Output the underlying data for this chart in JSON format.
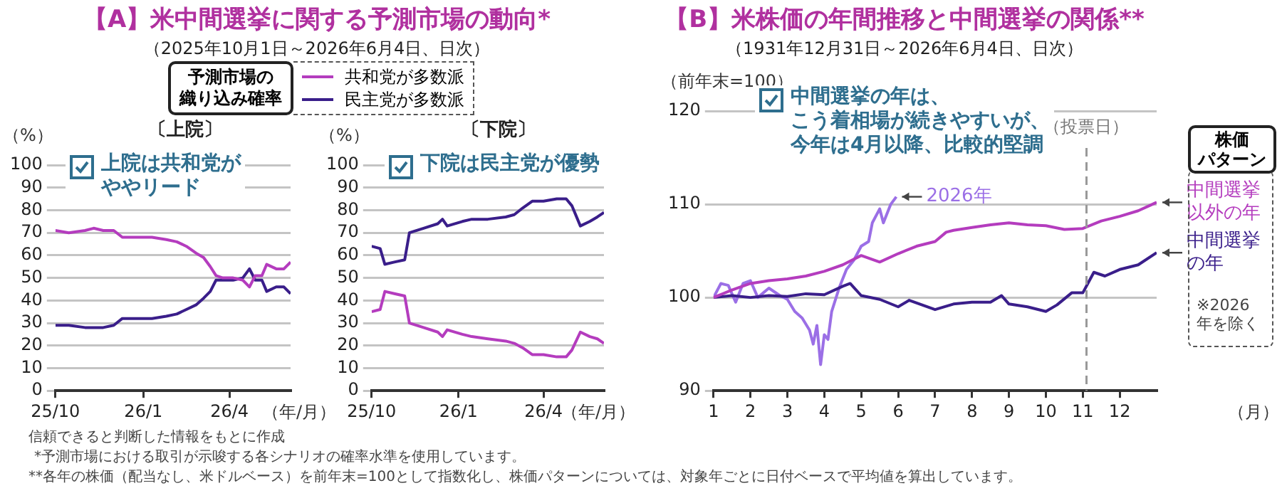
{
  "chart_data": [
    {
      "type": "line",
      "title": "【A】米中間選挙に関する予測市場の動向*",
      "subtitle": "（2025年10月1日～2026年6月4日、日次）",
      "legend_title": "予測市場の織り込み確率",
      "legend": "top",
      "ylabel": "（%）",
      "xlabel": "（年/月）",
      "x": [
        "2025-10-01",
        "2025-10-15",
        "2025-11-01",
        "2025-11-10",
        "2025-11-20",
        "2025-12-01",
        "2025-12-10",
        "2025-12-25",
        "2026-01-10",
        "2026-01-25",
        "2026-02-05",
        "2026-02-15",
        "2026-02-25",
        "2026-03-05",
        "2026-03-12",
        "2026-03-18",
        "2026-03-25",
        "2026-04-05",
        "2026-04-15",
        "2026-04-22",
        "2026-04-28",
        "2026-05-05",
        "2026-05-10",
        "2026-05-20",
        "2026-05-28",
        "2026-06-04"
      ],
      "xlim": [
        "2025-10-01",
        "2026-06-04"
      ],
      "xticks": [
        {
          "value": "2025-10-01",
          "label": "25/10"
        },
        {
          "value": "2026-01-01",
          "label": "26/1"
        },
        {
          "value": "2026-04-01",
          "label": "26/4"
        }
      ],
      "ylim": [
        0,
        100
      ],
      "yticks": [
        0,
        10,
        20,
        30,
        40,
        50,
        60,
        70,
        80,
        90,
        100
      ],
      "grid": "y",
      "series": [
        {
          "name": "共和党が多数派",
          "color": "#b43cbe",
          "values": [
            71,
            70,
            71,
            72,
            71,
            71,
            68,
            68,
            68,
            67,
            66,
            64,
            61,
            59,
            55,
            51,
            50,
            50,
            49,
            46,
            51,
            51,
            56,
            54,
            54,
            57
          ]
        },
        {
          "name": "民主党が多数派",
          "color": "#3a1e8a",
          "values": [
            29,
            29,
            28,
            28,
            28,
            29,
            32,
            32,
            32,
            33,
            34,
            36,
            38,
            41,
            44,
            49,
            49,
            49,
            50,
            54,
            49,
            49,
            44,
            46,
            46,
            43
          ]
        }
      ],
      "annotations": [
        "〔上院〕",
        "上院は共和党がややリード",
        "信頼できると判断した情報をもとに作成",
        "*予測市場における取引が示唆する各シナリオの確率水準を使用しています。",
        "**各年の株価（配当なし、米ドルベース）を前年末=100として指数化し、株価パターンについては、対象年ごとに日付ベースで平均値を算出しています。"
      ]
    },
    {
      "type": "line",
      "ylabel": "（%）",
      "xlabel": "（年/月）",
      "x": [
        "2025-10-01",
        "2025-10-10",
        "2025-10-15",
        "2025-10-25",
        "2025-11-05",
        "2025-11-10",
        "2025-11-25",
        "2025-12-10",
        "2025-12-15",
        "2025-12-20",
        "2026-01-05",
        "2026-01-15",
        "2026-02-01",
        "2026-02-20",
        "2026-03-01",
        "2026-03-10",
        "2026-03-20",
        "2026-04-01",
        "2026-04-15",
        "2026-04-25",
        "2026-05-01",
        "2026-05-10",
        "2026-05-20",
        "2026-05-28",
        "2026-06-04"
      ],
      "xlim": [
        "2025-10-01",
        "2026-06-04"
      ],
      "xticks": [
        {
          "value": "2025-10-01",
          "label": "25/10"
        },
        {
          "value": "2026-01-01",
          "label": "26/1"
        },
        {
          "value": "2026-04-01",
          "label": "26/4"
        }
      ],
      "ylim": [
        0,
        100
      ],
      "yticks": [
        0,
        10,
        20,
        30,
        40,
        50,
        60,
        70,
        80,
        90,
        100
      ],
      "grid": "y",
      "series": [
        {
          "color": "#b43cbe",
          "values": [
            35,
            36,
            44,
            43,
            42,
            30,
            28,
            26,
            24,
            27,
            25,
            24,
            23,
            22,
            21,
            19,
            16,
            16,
            15,
            15,
            18,
            26,
            24,
            23,
            21
          ]
        },
        {
          "color": "#3a1e8a",
          "values": [
            64,
            63,
            56,
            57,
            58,
            70,
            72,
            74,
            76,
            73,
            75,
            76,
            76,
            77,
            78,
            81,
            84,
            84,
            85,
            85,
            82,
            73,
            75,
            77,
            79
          ]
        }
      ],
      "annotations": [
        "〔下院〕",
        "下院は民主党が優勢"
      ]
    },
    {
      "type": "line",
      "title": "【B】米株価の年間推移と中間選挙の関係**",
      "subtitle": "（1931年12月31日～2026年6月4日、日次）",
      "legend_title": "株価パターン",
      "ylabel": "（前年末=100）",
      "xlabel": "（月）",
      "xlim": [
        1,
        13
      ],
      "xticks": [
        1,
        2,
        3,
        4,
        5,
        6,
        7,
        8,
        9,
        10,
        11,
        12
      ],
      "ylim": [
        90,
        120
      ],
      "yticks": [
        90,
        100,
        110,
        120
      ],
      "grid": "y",
      "ref_lines": [
        {
          "axis": "x",
          "value": 11.1,
          "label": "（投票日）",
          "color": "#999999",
          "line_style": "dashed"
        }
      ],
      "series": [
        {
          "name": "中間選挙以外の年",
          "color": "#b43cbe",
          "x": [
            1,
            1.5,
            2,
            2.5,
            3,
            3.5,
            4,
            4.5,
            5,
            5.5,
            6,
            6.5,
            7,
            7.3,
            7.5,
            8,
            8.5,
            9,
            9.5,
            10,
            10.5,
            11,
            11.5,
            12,
            12.5,
            13
          ],
          "values": [
            100,
            100.8,
            101.5,
            101.8,
            102,
            102.3,
            102.8,
            103.5,
            104.5,
            103.8,
            104.7,
            105.5,
            106,
            107,
            107.2,
            107.5,
            107.8,
            108,
            107.8,
            107.7,
            107.3,
            107.4,
            108.2,
            108.7,
            109.3,
            110.2
          ]
        },
        {
          "name": "中間選挙の年",
          "color": "#3a1e8a",
          "x": [
            1,
            1.5,
            2,
            2.5,
            3,
            3.5,
            4,
            4.5,
            4.7,
            5,
            5.5,
            6,
            6.3,
            7,
            7.5,
            8,
            8.5,
            8.8,
            9,
            9.5,
            10,
            10.3,
            10.7,
            11,
            11.3,
            11.6,
            12,
            12.5,
            13
          ],
          "values": [
            100,
            100.2,
            100,
            100.2,
            100.1,
            100.4,
            100.3,
            101.2,
            101.5,
            100.2,
            99.8,
            99,
            99.7,
            98.7,
            99.3,
            99.5,
            99.5,
            100.2,
            99.3,
            99,
            98.5,
            99.2,
            100.5,
            100.5,
            102.7,
            102.3,
            103,
            103.5,
            104.8
          ]
        },
        {
          "name": "2026年",
          "color": "#9b6fe6",
          "x": [
            1,
            1.2,
            1.4,
            1.6,
            1.8,
            2,
            2.2,
            2.5,
            2.8,
            3,
            3.2,
            3.4,
            3.6,
            3.7,
            3.8,
            3.9,
            4,
            4.1,
            4.2,
            4.4,
            4.6,
            4.8,
            5,
            5.2,
            5.3,
            5.5,
            5.6,
            5.8,
            5.95
          ],
          "values": [
            100,
            101.5,
            101.3,
            99.5,
            101.5,
            101.8,
            100,
            101,
            100.2,
            99.8,
            98.5,
            97.8,
            96.5,
            95,
            97,
            92.8,
            96,
            95.5,
            98.5,
            101,
            103,
            104,
            105.5,
            106,
            108,
            109.5,
            108,
            110,
            110.8
          ]
        }
      ],
      "annotations": [
        "中間選挙の年は、こう着相場が続きやすいが、今年は4月以降、比較的堅調",
        "※2026年を除く"
      ]
    }
  ]
}
